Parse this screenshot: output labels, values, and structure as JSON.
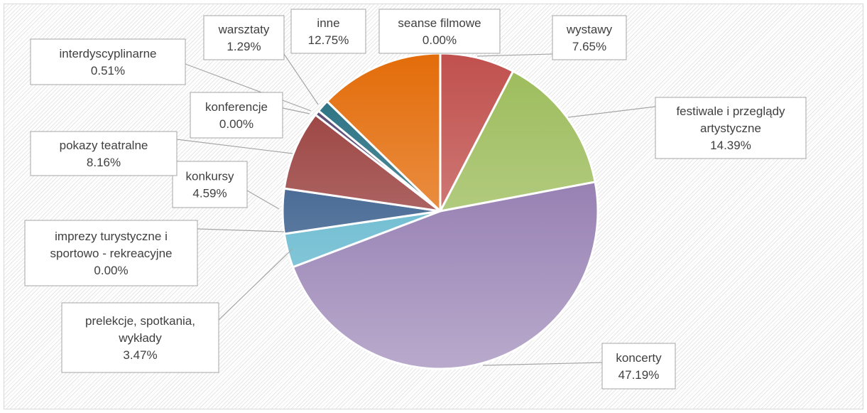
{
  "chart_data": {
    "type": "pie",
    "title": "",
    "slices": [
      {
        "name": "seanse filmowe",
        "value": 0.0,
        "label": "0.00%",
        "color": "#c0504d"
      },
      {
        "name": "wystawy",
        "value": 7.65,
        "label": "7.65%",
        "color": "#c0504d"
      },
      {
        "name": "festiwale i przeglądy artystyczne",
        "value": 14.39,
        "label": "14.39%",
        "color": "#9bbb59"
      },
      {
        "name": "koncerty",
        "value": 47.19,
        "label": "47.19%",
        "color": "#8064a2"
      },
      {
        "name": "prelekcje, spotkania, wykłady",
        "value": 3.47,
        "label": "3.47%",
        "color": "#4bacc6"
      },
      {
        "name": "imprezy turystyczne i sportowo - rekreacyjne",
        "value": 0.0,
        "label": "0.00%",
        "color": "#4bacc6"
      },
      {
        "name": "konkursy",
        "value": 4.59,
        "label": "4.59%",
        "color": "#1f497d"
      },
      {
        "name": "pokazy teatralne",
        "value": 8.16,
        "label": "8.16%",
        "color": "#943634"
      },
      {
        "name": "konferencje",
        "value": 0.0,
        "label": "0.00%",
        "color": "#5f497a"
      },
      {
        "name": "interdyscyplinarne",
        "value": 0.51,
        "label": "0.51%",
        "color": "#4f3e6b"
      },
      {
        "name": "warsztaty",
        "value": 1.29,
        "label": "1.29%",
        "color": "#1f6a7d"
      },
      {
        "name": "inne",
        "value": 12.75,
        "label": "12.75%",
        "color": "#e36c09"
      }
    ],
    "legend": "none",
    "data_labels": "callouts with category name and percentage"
  }
}
